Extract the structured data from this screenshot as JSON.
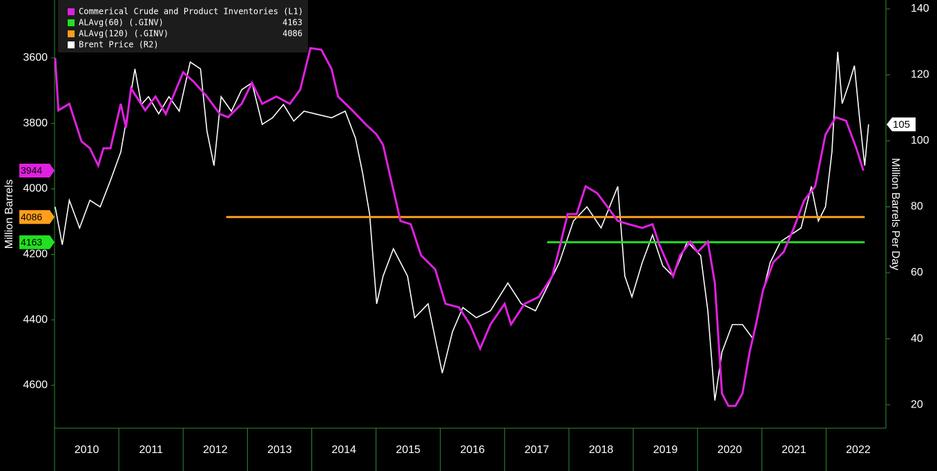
{
  "chart_data": {
    "type": "line",
    "ylabel": "Million Barrels",
    "y2label": "Million Barrels Per Day",
    "xlim": [
      2010,
      2022.93
    ],
    "xticks": [
      {
        "value": 2010.5,
        "label": "2010"
      },
      {
        "value": 2011.5,
        "label": "2011"
      },
      {
        "value": 2012.5,
        "label": "2012"
      },
      {
        "value": 2013.5,
        "label": "2013"
      },
      {
        "value": 2014.5,
        "label": "2014"
      },
      {
        "value": 2015.5,
        "label": "2015"
      },
      {
        "value": 2016.5,
        "label": "2016"
      },
      {
        "value": 2017.5,
        "label": "2017"
      },
      {
        "value": 2018.5,
        "label": "2018"
      },
      {
        "value": 2019.5,
        "label": "2019"
      },
      {
        "value": 2020.5,
        "label": "2020"
      },
      {
        "value": 2021.5,
        "label": "2021"
      },
      {
        "value": 2022.5,
        "label": "2022"
      }
    ],
    "ylim": [
      4731,
      3423
    ],
    "yticks": [
      3600,
      3800,
      4000,
      4200,
      4400,
      4600
    ],
    "y2lim": [
      12.9,
      142.7
    ],
    "y2ticks": [
      20,
      40,
      60,
      80,
      100,
      120,
      140
    ],
    "series": [
      {
        "name": "Commerical Crude and Product Inventories (L1)",
        "color": "#e020e0",
        "x": [
          2010.01,
          2010.06,
          2010.23,
          2010.42,
          2010.55,
          2010.68,
          2010.76,
          2010.87,
          2011.03,
          2011.11,
          2011.19,
          2011.41,
          2011.57,
          2011.73,
          2012.0,
          2012.16,
          2012.37,
          2012.57,
          2012.7,
          2012.91,
          2013.07,
          2013.23,
          2013.45,
          2013.66,
          2013.82,
          2013.98,
          2014.15,
          2014.31,
          2014.41,
          2014.63,
          2014.84,
          2015.01,
          2015.11,
          2015.22,
          2015.38,
          2015.54,
          2015.7,
          2015.92,
          2016.08,
          2016.29,
          2016.46,
          2016.62,
          2016.78,
          2017.0,
          2017.1,
          2017.31,
          2017.53,
          2017.74,
          2017.85,
          2017.98,
          2018.12,
          2018.26,
          2018.44,
          2018.6,
          2018.76,
          2018.93,
          2019.14,
          2019.3,
          2019.41,
          2019.62,
          2019.73,
          2019.89,
          2020.0,
          2020.16,
          2020.27,
          2020.38,
          2020.48,
          2020.59,
          2020.7,
          2020.81,
          2020.91,
          2021.02,
          2021.18,
          2021.34,
          2021.5,
          2021.66,
          2021.83,
          2021.99,
          2022.15,
          2022.31,
          2022.47,
          2022.58
        ],
        "values": [
          3600,
          3760,
          3740,
          3855,
          3876,
          3929,
          3876,
          3876,
          3740,
          3813,
          3693,
          3760,
          3718,
          3771,
          3644,
          3672,
          3718,
          3771,
          3781,
          3740,
          3676,
          3740,
          3718,
          3740,
          3697,
          3570,
          3575,
          3634,
          3718,
          3760,
          3803,
          3834,
          3866,
          3961,
          4098,
          4108,
          4203,
          4246,
          4351,
          4362,
          4414,
          4488,
          4414,
          4351,
          4414,
          4351,
          4330,
          4267,
          4182,
          4077,
          4077,
          3992,
          4013,
          4055,
          4098,
          4108,
          4119,
          4108,
          4172,
          4267,
          4203,
          4161,
          4193,
          4161,
          4288,
          4625,
          4663,
          4663,
          4625,
          4499,
          4414,
          4309,
          4224,
          4193,
          4119,
          4035,
          3992,
          3834,
          3781,
          3792,
          3876,
          3944
        ]
      },
      {
        "name": "ALAvg(60) (.GINV)",
        "color": "#22e022",
        "x": [
          2017.66,
          2022.6
        ],
        "values": [
          4163,
          4163
        ]
      },
      {
        "name": "ALAvg(120) (.GINV)",
        "color": "#ff9f1a",
        "x": [
          2012.67,
          2022.6
        ],
        "values": [
          4086,
          4086
        ]
      },
      {
        "name": "Brent Price (R2)",
        "color": "#ffffff",
        "axis": "y2",
        "x": [
          2010.01,
          2010.12,
          2010.23,
          2010.39,
          2010.55,
          2010.71,
          2010.87,
          2011.03,
          2011.14,
          2011.25,
          2011.35,
          2011.46,
          2011.62,
          2011.78,
          2011.94,
          2012.11,
          2012.27,
          2012.37,
          2012.48,
          2012.59,
          2012.75,
          2012.91,
          2013.07,
          2013.23,
          2013.39,
          2013.56,
          2013.72,
          2013.88,
          2014.09,
          2014.31,
          2014.52,
          2014.68,
          2014.79,
          2014.9,
          2015.01,
          2015.11,
          2015.27,
          2015.49,
          2015.6,
          2015.81,
          2016.03,
          2016.19,
          2016.35,
          2016.56,
          2016.78,
          2017.05,
          2017.26,
          2017.48,
          2017.64,
          2017.85,
          2018.07,
          2018.28,
          2018.5,
          2018.76,
          2018.87,
          2018.98,
          2019.14,
          2019.3,
          2019.46,
          2019.62,
          2019.84,
          2020.05,
          2020.16,
          2020.27,
          2020.38,
          2020.54,
          2020.7,
          2020.86,
          2020.97,
          2021.13,
          2021.29,
          2021.45,
          2021.61,
          2021.77,
          2021.88,
          2021.99,
          2022.09,
          2022.18,
          2022.25,
          2022.36,
          2022.44,
          2022.52,
          2022.6,
          2022.66
        ],
        "values": [
          80,
          68.5,
          82,
          73.6,
          82,
          80,
          88,
          96.6,
          109,
          121.8,
          111,
          113.4,
          108.2,
          113.4,
          109,
          123.9,
          121.8,
          103,
          92.5,
          113.4,
          109,
          115.5,
          117.6,
          105,
          107,
          111,
          106,
          109,
          108,
          107,
          109,
          100.8,
          90.4,
          77.8,
          50.6,
          59,
          67.3,
          59,
          46.4,
          50.6,
          29.6,
          42.2,
          49.5,
          46.4,
          48.5,
          56.9,
          50.6,
          48.5,
          54.8,
          63.1,
          75.7,
          80,
          73.6,
          86.2,
          59,
          52.7,
          63.1,
          71.5,
          62.1,
          59,
          69.4,
          65.2,
          48.5,
          21.3,
          36,
          44.3,
          44.3,
          40.1,
          50.6,
          63.1,
          69.4,
          71.5,
          73.6,
          86.2,
          75.7,
          80,
          96.6,
          127,
          111.3,
          117.6,
          122.8,
          107,
          92.5,
          105
        ]
      }
    ]
  }
}
